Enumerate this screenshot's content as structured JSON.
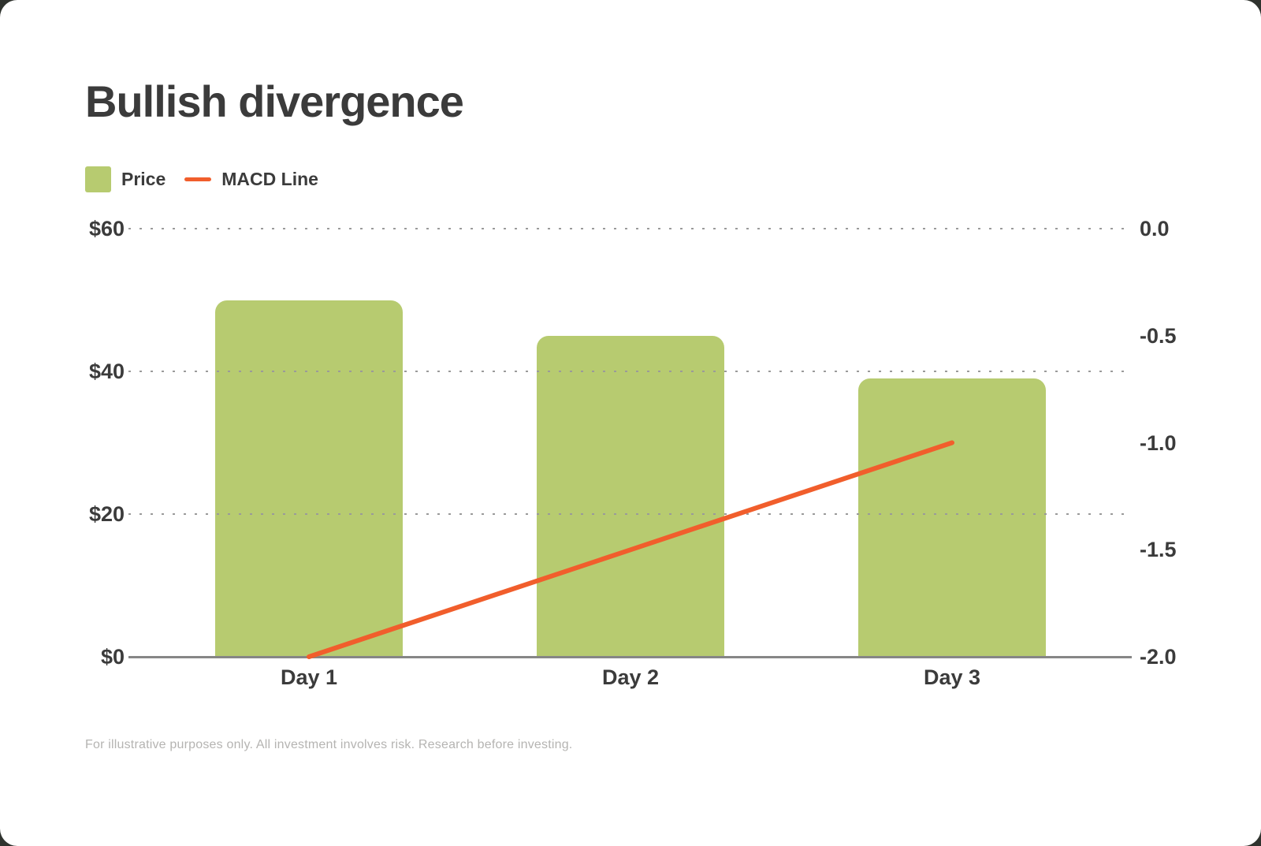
{
  "page": {
    "title": "Bullish divergence",
    "footnote": "For illustrative purposes only. All investment involves risk. Research before investing."
  },
  "legend": {
    "price_label": "Price",
    "macd_label": "MACD Line"
  },
  "colors": {
    "bar_green": "#B7CB70",
    "line_orange": "#F15E2C",
    "text_dark": "#3b3b3b",
    "axis_gray": "#868686",
    "grid_gray": "#9a9a9a",
    "footnote_gray": "#b5b4b2"
  },
  "chart_data": {
    "type": "bar",
    "title": "Bullish divergence",
    "categories": [
      "Day 1",
      "Day 2",
      "Day 3"
    ],
    "series": [
      {
        "name": "Price",
        "type": "bar",
        "axis": "left",
        "color": "#B7CB70",
        "values": [
          50,
          45,
          39
        ]
      },
      {
        "name": "MACD Line",
        "type": "line",
        "axis": "right",
        "color": "#F15E2C",
        "values": [
          -2.0,
          -1.5,
          -1.0
        ]
      }
    ],
    "left_axis": {
      "range": [
        0,
        60
      ],
      "ticks": [
        {
          "label": "$60",
          "value": 60
        },
        {
          "label": "$40",
          "value": 40
        },
        {
          "label": "$20",
          "value": 20
        },
        {
          "label": "$0",
          "value": 0
        }
      ]
    },
    "right_axis": {
      "range": [
        -2.0,
        0.0
      ],
      "ticks": [
        {
          "label": "0.0",
          "value": 0.0
        },
        {
          "label": "-0.5",
          "value": -0.5
        },
        {
          "label": "-1.0",
          "value": -1.0
        },
        {
          "label": "-1.5",
          "value": -1.5
        },
        {
          "label": "-2.0",
          "value": -2.0
        }
      ]
    },
    "grid": "dotted horizontal, drawn over bars",
    "legend_position": "top-left"
  }
}
